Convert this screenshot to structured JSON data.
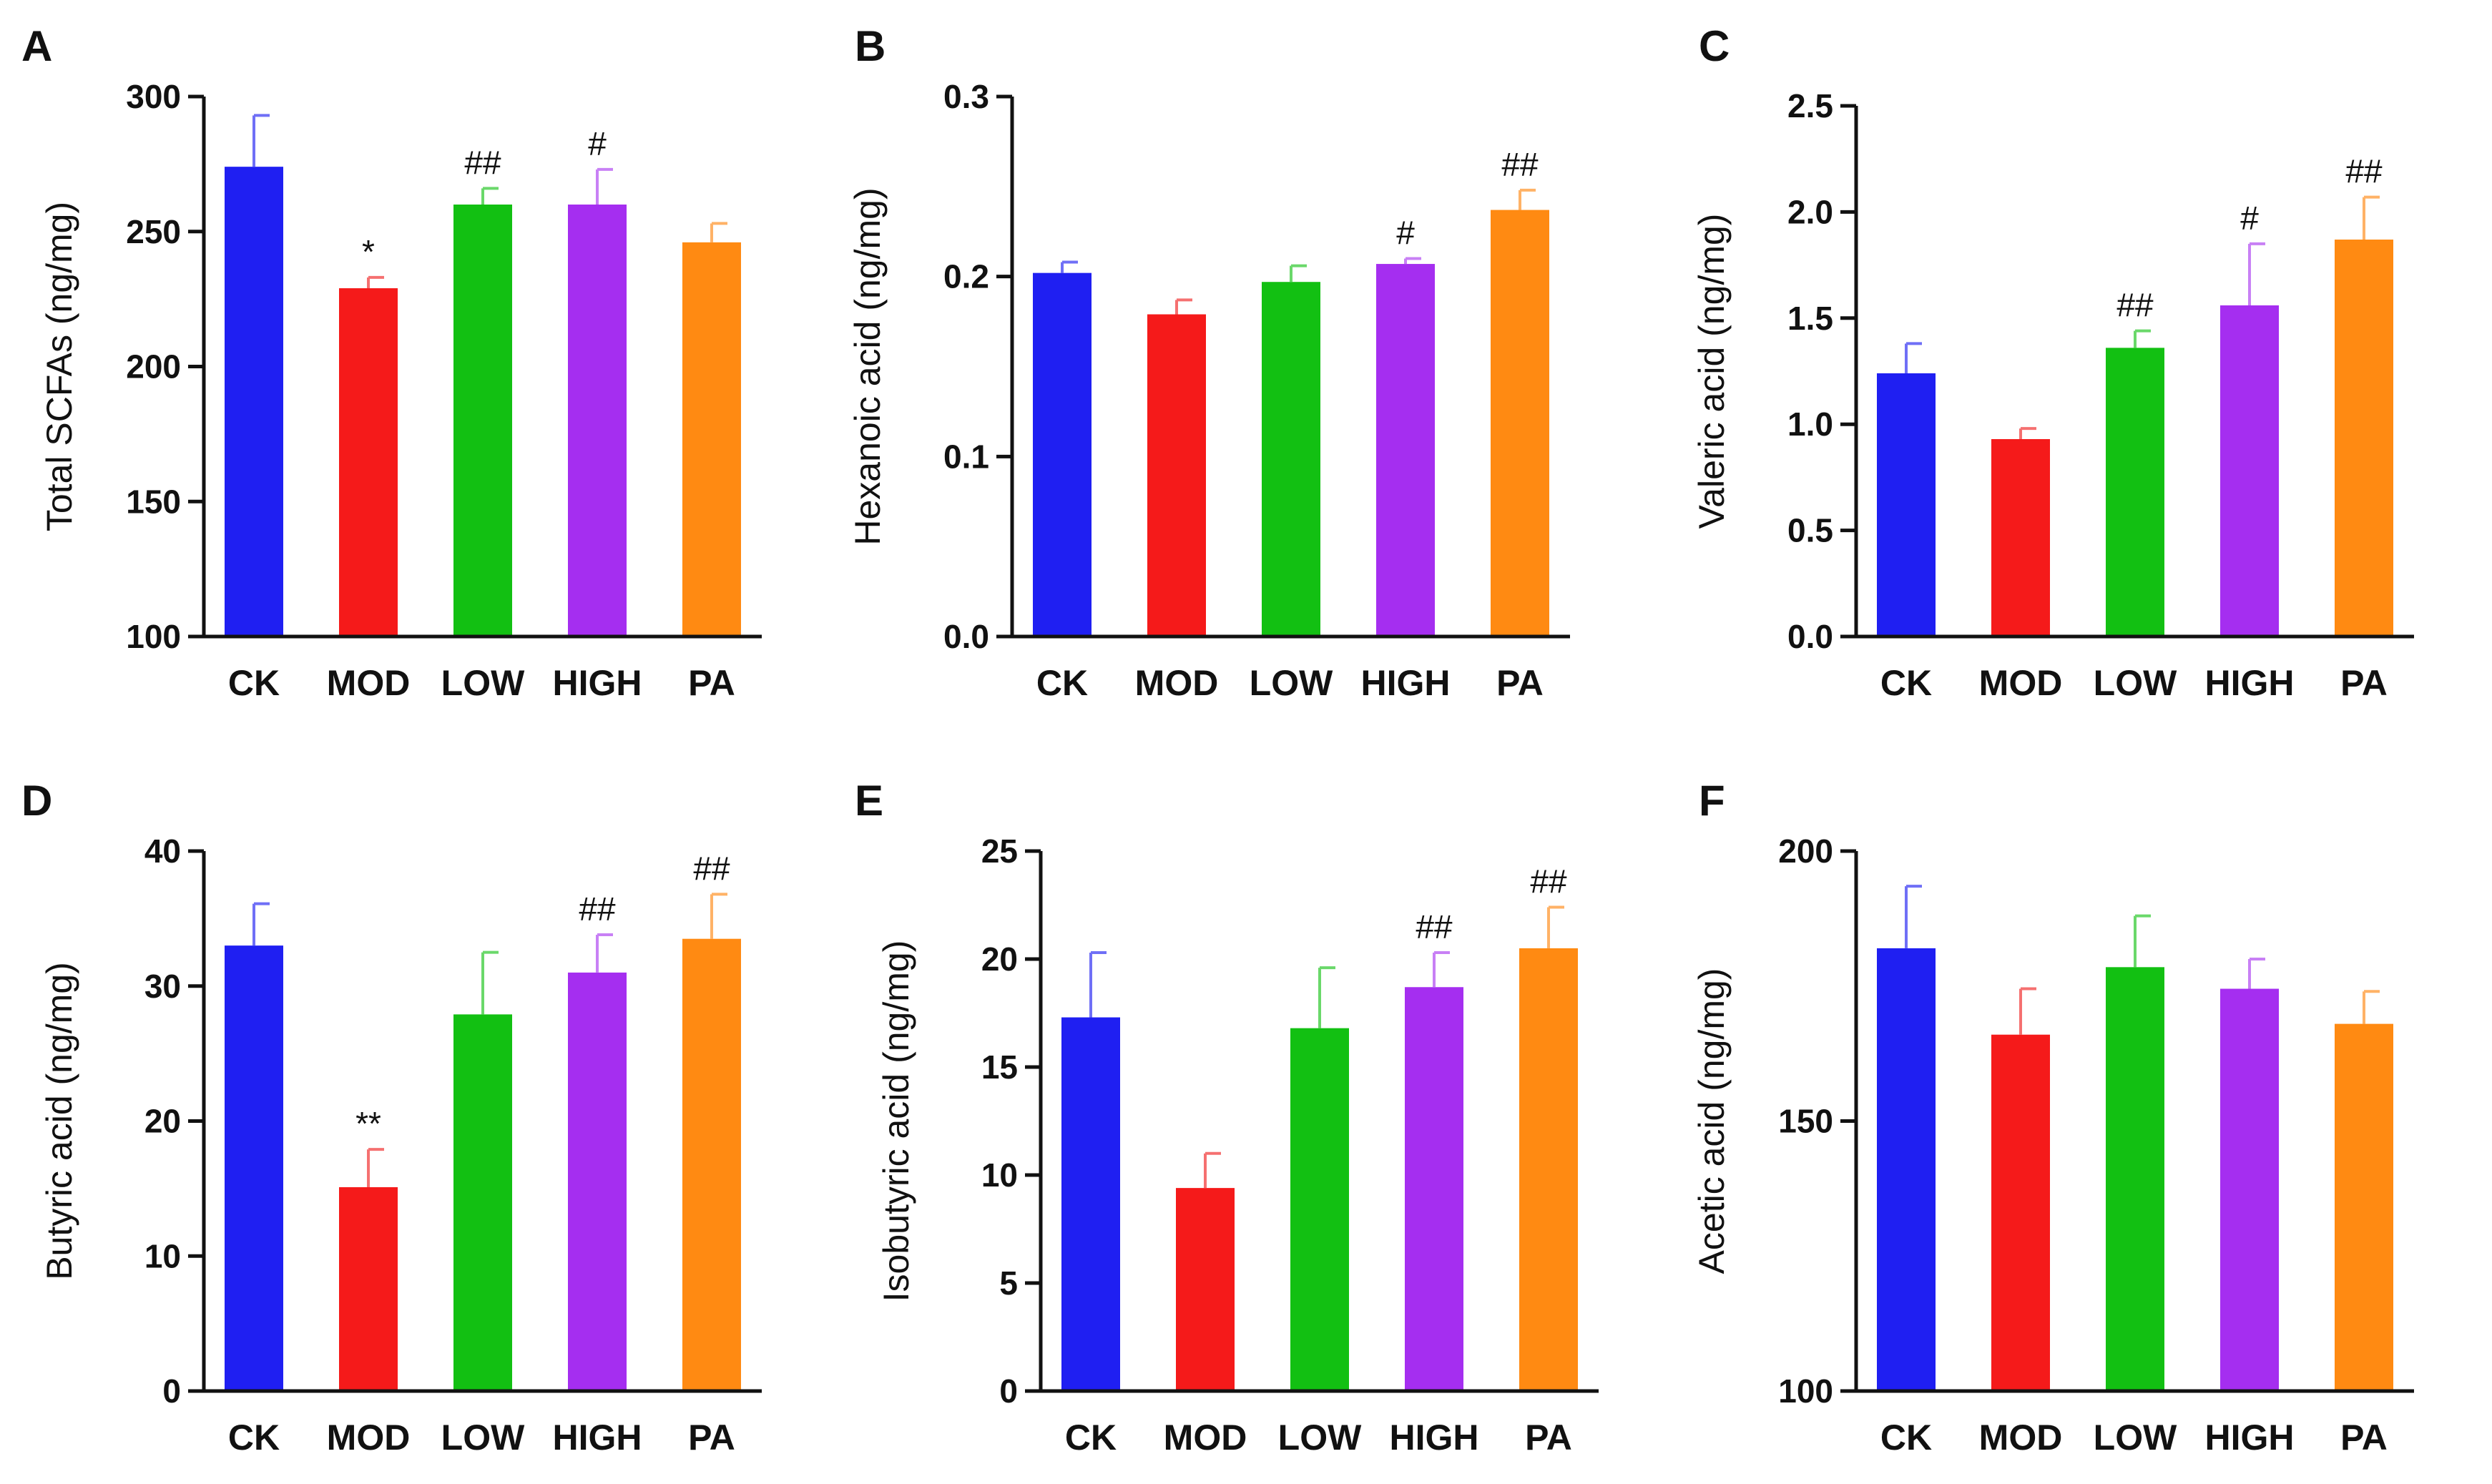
{
  "chart_data": [
    {
      "type": "bar",
      "panel": "A",
      "ylabel": "Total SCFAs (ng/mg)",
      "categories": [
        "CK",
        "MOD",
        "LOW",
        "HIGH",
        "PA"
      ],
      "values": [
        274,
        229,
        260,
        260,
        246
      ],
      "errors": [
        19,
        4,
        6,
        13,
        7
      ],
      "significance": [
        "",
        "*",
        "##",
        "#",
        ""
      ],
      "ylim": [
        100,
        300
      ],
      "yticks": [
        100,
        150,
        200,
        250,
        300
      ],
      "ytick_labels": [
        "100",
        "150",
        "200",
        "250",
        "300"
      ],
      "colors": [
        "#1f1ff2",
        "#f51a1a",
        "#12c012",
        "#a52ef0",
        "#ff8a12"
      ],
      "err_colors": [
        "#6f6ff6",
        "#f57070",
        "#6ad86a",
        "#c880f5",
        "#ffb266"
      ]
    },
    {
      "type": "bar",
      "panel": "B",
      "ylabel": "Hexanoic acid (ng/mg)",
      "categories": [
        "CK",
        "MOD",
        "LOW",
        "HIGH",
        "PA"
      ],
      "values": [
        0.202,
        0.179,
        0.197,
        0.207,
        0.237
      ],
      "errors": [
        0.006,
        0.008,
        0.009,
        0.003,
        0.011
      ],
      "significance": [
        "",
        "",
        "",
        "#",
        "##"
      ],
      "ylim": [
        0,
        0.3
      ],
      "yticks": [
        0,
        0.1,
        0.2,
        0.3
      ],
      "ytick_labels": [
        "0.0",
        "0.1",
        "0.2",
        "0.3"
      ],
      "colors": [
        "#1f1ff2",
        "#f51a1a",
        "#12c012",
        "#a52ef0",
        "#ff8a12"
      ],
      "err_colors": [
        "#6f6ff6",
        "#f57070",
        "#6ad86a",
        "#c880f5",
        "#ffb266"
      ]
    },
    {
      "type": "bar",
      "panel": "C",
      "ylabel": "Valeric acid (ng/mg)",
      "categories": [
        "CK",
        "MOD",
        "LOW",
        "HIGH",
        "PA"
      ],
      "values": [
        1.24,
        0.93,
        1.36,
        1.56,
        1.87
      ],
      "errors": [
        0.14,
        0.05,
        0.08,
        0.29,
        0.2
      ],
      "significance": [
        "",
        "",
        "##",
        "#",
        "##"
      ],
      "ylim": [
        0,
        2.5
      ],
      "yticks": [
        0,
        0.5,
        1.0,
        1.5,
        2.0,
        2.5
      ],
      "ytick_labels": [
        "0.0",
        "0.5",
        "1.0",
        "1.5",
        "2.0",
        "2.5"
      ],
      "colors": [
        "#1f1ff2",
        "#f51a1a",
        "#12c012",
        "#a52ef0",
        "#ff8a12"
      ],
      "err_colors": [
        "#6f6ff6",
        "#f57070",
        "#6ad86a",
        "#c880f5",
        "#ffb266"
      ]
    },
    {
      "type": "bar",
      "panel": "D",
      "ylabel": "Butyric acid (ng/mg)",
      "categories": [
        "CK",
        "MOD",
        "LOW",
        "HIGH",
        "PA"
      ],
      "values": [
        33,
        15.1,
        27.9,
        31,
        33.5
      ],
      "errors": [
        3.1,
        2.8,
        4.6,
        2.8,
        3.3
      ],
      "significance": [
        "",
        "**",
        "",
        "##",
        "##"
      ],
      "ylim": [
        0,
        40
      ],
      "yticks": [
        0,
        10,
        20,
        30,
        40
      ],
      "ytick_labels": [
        "0",
        "10",
        "20",
        "30",
        "40"
      ],
      "colors": [
        "#1f1ff2",
        "#f51a1a",
        "#12c012",
        "#a52ef0",
        "#ff8a12"
      ],
      "err_colors": [
        "#6f6ff6",
        "#f57070",
        "#6ad86a",
        "#c880f5",
        "#ffb266"
      ]
    },
    {
      "type": "bar",
      "panel": "E",
      "ylabel": "Isobutyric acid (ng/mg)",
      "categories": [
        "CK",
        "MOD",
        "LOW",
        "HIGH",
        "PA"
      ],
      "values": [
        17.3,
        9.4,
        16.8,
        18.7,
        20.5
      ],
      "errors": [
        3.0,
        1.6,
        2.8,
        1.6,
        1.9
      ],
      "significance": [
        "",
        "",
        "",
        "##",
        "##"
      ],
      "ylim": [
        0,
        25
      ],
      "yticks": [
        0,
        5,
        10,
        15,
        20,
        25
      ],
      "ytick_labels": [
        "0",
        "5",
        "10",
        "15",
        "20",
        "25"
      ],
      "colors": [
        "#1f1ff2",
        "#f51a1a",
        "#12c012",
        "#a52ef0",
        "#ff8a12"
      ],
      "err_colors": [
        "#6f6ff6",
        "#f57070",
        "#6ad86a",
        "#c880f5",
        "#ffb266"
      ]
    },
    {
      "type": "bar",
      "panel": "F",
      "ylabel": "Acetic acid (ng/mg)",
      "categories": [
        "CK",
        "MOD",
        "LOW",
        "HIGH",
        "PA"
      ],
      "values": [
        182,
        166,
        178.5,
        174.5,
        168
      ],
      "errors": [
        11.5,
        8.5,
        9.5,
        5.5,
        6
      ],
      "significance": [
        "",
        "",
        "",
        "",
        ""
      ],
      "ylim": [
        100,
        200
      ],
      "yticks": [
        100,
        150,
        200
      ],
      "ytick_labels": [
        "100",
        "150",
        "200"
      ],
      "colors": [
        "#1f1ff2",
        "#f51a1a",
        "#12c012",
        "#a52ef0",
        "#ff8a12"
      ],
      "err_colors": [
        "#6f6ff6",
        "#f57070",
        "#6ad86a",
        "#c880f5",
        "#ffb266"
      ]
    }
  ]
}
